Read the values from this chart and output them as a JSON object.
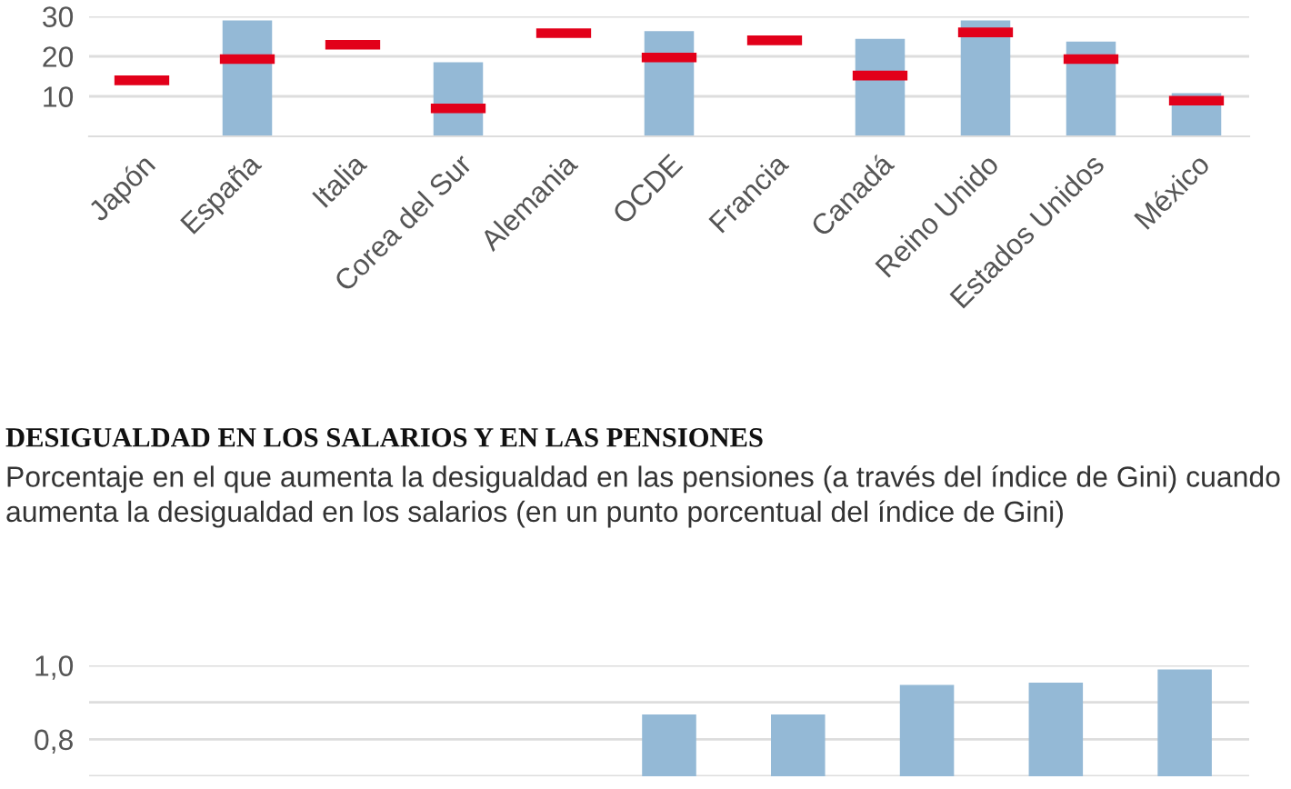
{
  "chart_data": [
    {
      "type": "bar",
      "categories": [
        "Japón",
        "España",
        "Italia",
        "Corea del Sur",
        "Alemania",
        "OCDE",
        "Francia",
        "Canadá",
        "Reino Unido",
        "Estados Unidos",
        "México"
      ],
      "series": [
        {
          "type": "bar",
          "color": "#94b9d6",
          "values": [
            null,
            29.0,
            null,
            18.5,
            null,
            26.3,
            null,
            24.4,
            29.0,
            23.7,
            10.8
          ]
        },
        {
          "type": "bar",
          "color": "#e2001a",
          "base": [
            12.8,
            18.1,
            21.7,
            5.8,
            24.6,
            18.5,
            22.8,
            14.0,
            24.8,
            18.1,
            7.7
          ],
          "values": [
            2.4,
            2.4,
            2.4,
            2.4,
            2.4,
            2.4,
            2.4,
            2.4,
            2.4,
            2.4,
            2.4
          ]
        }
      ],
      "ylim": [
        0,
        30
      ],
      "yticks": [
        10,
        20,
        30
      ],
      "grid": "y"
    },
    {
      "type": "bar",
      "title": "DESIGUALDAD EN LOS SALARIOS Y EN LAS PENSIONES",
      "subtitle": "Porcentaje en el que aumenta la desigualdad en las pensiones (a través del índice de Gini) cuando aumenta la desigualdad en los salarios (en un punto porcentual del índice de Gini)",
      "categories": [
        null,
        null,
        null,
        null,
        null,
        null,
        null,
        null,
        null
      ],
      "values": [
        null,
        null,
        null,
        null,
        0.867,
        0.867,
        0.947,
        0.953,
        0.989
      ],
      "color": "#94b9d6",
      "ylim": [
        0.7,
        1.0
      ],
      "yticks": [
        {
          "value": 0.7,
          "label": null
        },
        {
          "value": 0.8,
          "label": "0,8"
        },
        {
          "value": 0.9,
          "label": null
        },
        {
          "value": 1.0,
          "label": "1,0"
        }
      ],
      "grid": "y"
    }
  ]
}
